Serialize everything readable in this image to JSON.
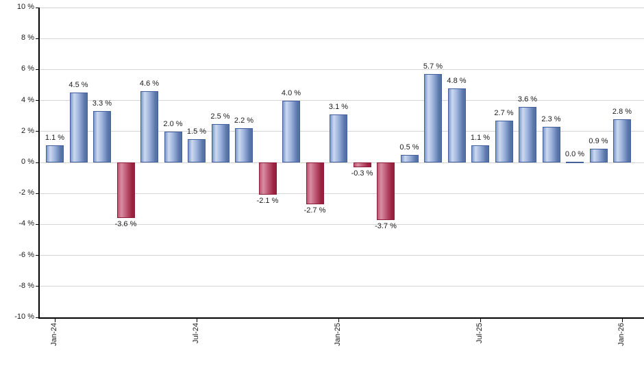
{
  "chart_data": {
    "type": "bar",
    "title": "",
    "xlabel": "",
    "ylabel": "",
    "grid": true,
    "legend": "none",
    "ylim": [
      -10,
      10
    ],
    "ytick_step": 2,
    "yticks": [
      {
        "value": 10,
        "label": "10 %"
      },
      {
        "value": 8,
        "label": "8 %"
      },
      {
        "value": 6,
        "label": "6 %"
      },
      {
        "value": 4,
        "label": "4 %"
      },
      {
        "value": 2,
        "label": "2 %"
      },
      {
        "value": 0,
        "label": "0 %"
      },
      {
        "value": -2,
        "label": "-2 %"
      },
      {
        "value": -4,
        "label": "-4 %"
      },
      {
        "value": -6,
        "label": "-6 %"
      },
      {
        "value": -8,
        "label": "-8 %"
      },
      {
        "value": -10,
        "label": "-10 %"
      }
    ],
    "x_ticks": [
      {
        "index": 0,
        "label": "Jan-24"
      },
      {
        "index": 6,
        "label": "Jul-24"
      },
      {
        "index": 12,
        "label": "Jan-25"
      },
      {
        "index": 18,
        "label": "Jul-25"
      },
      {
        "index": 24,
        "label": "Jan-26"
      }
    ],
    "values": [
      1.1,
      4.5,
      3.3,
      -3.6,
      4.6,
      2.0,
      1.5,
      2.5,
      2.2,
      -2.1,
      4.0,
      -2.7,
      3.1,
      -0.3,
      -3.7,
      0.5,
      5.7,
      4.8,
      1.1,
      2.7,
      3.6,
      2.3,
      0.0,
      0.9,
      2.8
    ],
    "bar_labels": [
      "1.1 %",
      "4.5 %",
      "3.3 %",
      "-3.6 %",
      "4.6 %",
      "2.0 %",
      "1.5 %",
      "2.5 %",
      "2.2 %",
      "-2.1 %",
      "4.0 %",
      "-2.7 %",
      "3.1 %",
      "-0.3 %",
      "-3.7 %",
      "0.5 %",
      "5.7 %",
      "4.8 %",
      "1.1 %",
      "2.7 %",
      "3.6 %",
      "2.3 %",
      "0.0 %",
      "0.9 %",
      "2.8 %"
    ],
    "colors": {
      "positive_fill_highlight": "#ccd9f0",
      "positive_fill_dark": "#52709f",
      "positive_border": "#44609c",
      "negative_fill_highlight": "#d98ea3",
      "negative_fill_dark": "#941f3d",
      "negative_border": "#8b1d39",
      "gridline": "#d4d4d4",
      "axis": "#000000",
      "label_text": "#1a1a1a",
      "background": "#ffffff"
    }
  }
}
